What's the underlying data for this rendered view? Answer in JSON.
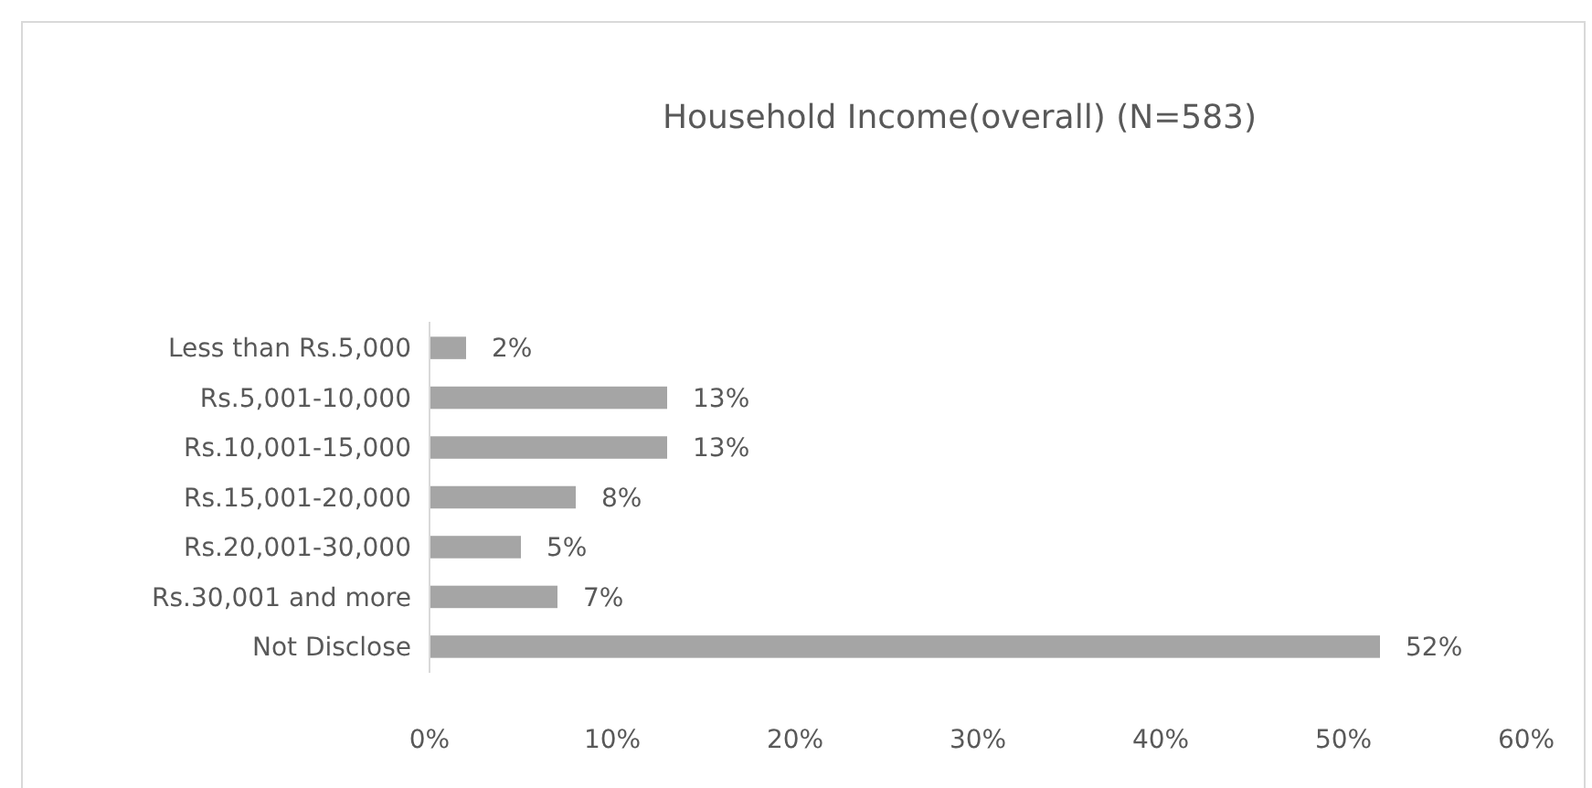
{
  "chart_data": {
    "type": "bar",
    "orientation": "horizontal",
    "title": "Household Income(overall) (N=583)",
    "categories": [
      "Less than Rs.5,000",
      "Rs.5,001-10,000",
      "Rs.10,001-15,000",
      "Rs.15,001-20,000",
      "Rs.20,001-30,000",
      "Rs.30,001 and more",
      "Not Disclose"
    ],
    "values": [
      2,
      13,
      13,
      8,
      5,
      7,
      52
    ],
    "value_labels": [
      "2%",
      "13%",
      "13%",
      "8%",
      "5%",
      "7%",
      "52%"
    ],
    "color": "#a5a5a5",
    "xlim": [
      0,
      60
    ],
    "xticks": [
      {
        "value": 0,
        "label": "0%"
      },
      {
        "value": 10,
        "label": "10%"
      },
      {
        "value": 20,
        "label": "20%"
      },
      {
        "value": 30,
        "label": "30%"
      },
      {
        "value": 40,
        "label": "40%"
      },
      {
        "value": 50,
        "label": "50%"
      },
      {
        "value": 60,
        "label": "60%"
      }
    ]
  }
}
